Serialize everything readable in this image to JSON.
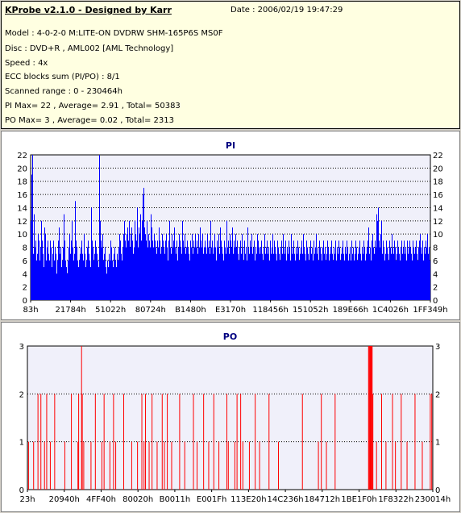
{
  "info": {
    "app": "KProbe v2.1.0 - Designed by Karr",
    "date": "Date : 2006/02/19 19:47:29",
    "lines": [
      "Model : 4-0-2-0 M:LITE-ON DVDRW SHM-165P6S MS0F",
      "Disc : DVD+R , AML002 [AML Technology]",
      "Speed : 4x",
      "ECC blocks sum (PI/PO) : 8/1",
      "Scanned range : 0 - 230464h",
      "PI Max= 22 , Average= 2.91 , Total= 50383",
      "PO Max= 3 , Average= 0.02 , Total= 2313"
    ]
  },
  "colors": {
    "pi": "#0000ff",
    "po": "#ff0000",
    "plot_bg": "#f0f0fa",
    "title": "#000080"
  },
  "chart_data": [
    {
      "type": "bar",
      "title": "PI",
      "ylim": [
        0,
        22
      ],
      "yticks": [
        0,
        2,
        4,
        6,
        8,
        10,
        12,
        14,
        16,
        18,
        20,
        22
      ],
      "xticks": [
        "83h",
        "21784h",
        "51022h",
        "80724h",
        "B1480h",
        "E3170h",
        "118456h",
        "151052h",
        "189E66h",
        "1C4026h",
        "1FF349h"
      ],
      "grid": true,
      "values": [
        12,
        19,
        22,
        7,
        13,
        8,
        9,
        6,
        7,
        10,
        9,
        6,
        8,
        12,
        9,
        7,
        5,
        11,
        10,
        6,
        8,
        9,
        7,
        6,
        9,
        8,
        5,
        7,
        9,
        6,
        8,
        7,
        4,
        6,
        9,
        11,
        7,
        8,
        5,
        6,
        8,
        13,
        9,
        6,
        5,
        4,
        6,
        8,
        10,
        7,
        9,
        12,
        8,
        6,
        7,
        15,
        9,
        8,
        6,
        5,
        6,
        7,
        8,
        9,
        7,
        6,
        10,
        7,
        5,
        6,
        8,
        9,
        7,
        6,
        5,
        14,
        9,
        8,
        6,
        7,
        9,
        8,
        7,
        6,
        5,
        22,
        12,
        9,
        8,
        10,
        6,
        7,
        8,
        5,
        4,
        6,
        5,
        7,
        6,
        9,
        8,
        6,
        5,
        7,
        8,
        6,
        5,
        7,
        6,
        8,
        10,
        9,
        7,
        6,
        8,
        10,
        12,
        9,
        8,
        10,
        11,
        9,
        12,
        8,
        10,
        11,
        9,
        7,
        8,
        12,
        10,
        9,
        14,
        8,
        11,
        10,
        13,
        9,
        12,
        16,
        17,
        11,
        10,
        9,
        12,
        8,
        10,
        9,
        8,
        13,
        11,
        9,
        8,
        10,
        9,
        8,
        7,
        9,
        8,
        11,
        9,
        7,
        8,
        10,
        9,
        8,
        7,
        9,
        10,
        8,
        6,
        9,
        12,
        8,
        7,
        10,
        8,
        9,
        11,
        8,
        7,
        9,
        6,
        8,
        10,
        9,
        8,
        7,
        12,
        9,
        8,
        10,
        7,
        8,
        9,
        8,
        7,
        6,
        9,
        8,
        10,
        7,
        9,
        8,
        10,
        8,
        9,
        7,
        10,
        8,
        11,
        9,
        8,
        10,
        7,
        8,
        9,
        8,
        7,
        10,
        8,
        9,
        7,
        12,
        8,
        9,
        7,
        8,
        10,
        8,
        6,
        9,
        8,
        10,
        7,
        11,
        9,
        8,
        7,
        6,
        9,
        8,
        7,
        12,
        8,
        9,
        7,
        10,
        9,
        8,
        11,
        7,
        9,
        8,
        10,
        8,
        9,
        7,
        6,
        8,
        9,
        7,
        10,
        8,
        6,
        9,
        7,
        8,
        6,
        11,
        8,
        7,
        9,
        8,
        10,
        7,
        8,
        9,
        6,
        8,
        7,
        10,
        9,
        8,
        7,
        8,
        9,
        7,
        6,
        8,
        10,
        7,
        8,
        9,
        7,
        8,
        6,
        9,
        7,
        8,
        10,
        7,
        9,
        8,
        7,
        6,
        9,
        8,
        7,
        6,
        8,
        9,
        7,
        10,
        8,
        7,
        9,
        6,
        8,
        7,
        9,
        8,
        6,
        10,
        7,
        8,
        9,
        7,
        6,
        8,
        7,
        9,
        8,
        6,
        7,
        8,
        9,
        7,
        10,
        8,
        7,
        6,
        9,
        8,
        7,
        6,
        8,
        9,
        7,
        8,
        6,
        9,
        7,
        8,
        10,
        7,
        8,
        6,
        9,
        8,
        7,
        6,
        8,
        9,
        7,
        8,
        6,
        7,
        9,
        8,
        6,
        7,
        8,
        9,
        7,
        6,
        8,
        7,
        9,
        6,
        8,
        7,
        9,
        8,
        6,
        7,
        8,
        9,
        7,
        6,
        8,
        7,
        9,
        8,
        6,
        7,
        8,
        6,
        9,
        7,
        8,
        6,
        7,
        9,
        8,
        6,
        7,
        8,
        9,
        7,
        6,
        8,
        7,
        9,
        8,
        6,
        7,
        8,
        9,
        11,
        7,
        8,
        6,
        9,
        10,
        8,
        7,
        9,
        8,
        13,
        12,
        14,
        9,
        8,
        10,
        12,
        7,
        9,
        8,
        6,
        7,
        9,
        8,
        7,
        6,
        9,
        8,
        7,
        10,
        8,
        7,
        9,
        8,
        6,
        7,
        9,
        8,
        7,
        6,
        8,
        9,
        7,
        8,
        9,
        7,
        8,
        6,
        9,
        7,
        8,
        9,
        8,
        7,
        6,
        9,
        8,
        7,
        8,
        9,
        7,
        6,
        8,
        9,
        10,
        8,
        7,
        9,
        6,
        8,
        7,
        9,
        8,
        10,
        7,
        8,
        6
      ]
    },
    {
      "type": "bar",
      "title": "PO",
      "ylim": [
        0,
        3
      ],
      "yticks": [
        0,
        1,
        2,
        3
      ],
      "xticks": [
        "23h",
        "20940h",
        "4FF40h",
        "80020h",
        "B0011h",
        "E001Fh",
        "113E20h",
        "14C236h",
        "184712h",
        "1BE1F0h",
        "1F8322h",
        "230014h"
      ],
      "grid": true,
      "values": [
        0,
        1,
        0,
        0,
        0,
        0,
        0,
        0,
        1,
        0,
        0,
        0,
        0,
        0,
        2,
        0,
        0,
        0,
        2,
        0,
        0,
        0,
        0,
        1,
        0,
        0,
        2,
        0,
        0,
        0,
        0,
        1,
        0,
        0,
        0,
        0,
        0,
        2,
        0,
        0,
        0,
        0,
        0,
        0,
        0,
        0,
        0,
        0,
        0,
        0,
        0,
        1,
        0,
        0,
        0,
        0,
        0,
        0,
        0,
        0,
        2,
        0,
        0,
        0,
        0,
        0,
        0,
        0,
        0,
        1,
        2,
        0,
        0,
        0,
        3,
        2,
        0,
        1,
        0,
        0,
        0,
        0,
        0,
        0,
        0,
        0,
        0,
        1,
        0,
        0,
        0,
        0,
        0,
        2,
        0,
        0,
        0,
        0,
        0,
        0,
        0,
        0,
        1,
        0,
        0,
        2,
        0,
        0,
        0,
        0,
        0,
        0,
        0,
        1,
        0,
        0,
        0,
        0,
        2,
        0,
        0,
        1,
        0,
        0,
        0,
        0,
        0,
        0,
        0,
        0,
        0,
        0,
        2,
        0,
        0,
        0,
        0,
        0,
        0,
        0,
        0,
        0,
        0,
        1,
        0,
        0,
        0,
        0,
        0,
        0,
        0,
        1,
        0,
        0,
        0,
        0,
        0,
        2,
        0,
        0,
        1,
        0,
        2,
        0,
        0,
        0,
        0,
        1,
        0,
        0,
        0,
        2,
        0,
        0,
        0,
        0,
        0,
        0,
        1,
        0,
        0,
        0,
        0,
        0,
        0,
        2,
        0,
        0,
        1,
        0,
        0,
        0,
        2,
        0,
        0,
        0,
        0,
        0,
        1,
        0,
        0,
        0,
        0,
        0,
        0,
        0,
        0,
        0,
        0,
        2,
        0,
        0,
        0,
        0,
        0,
        0,
        1,
        0,
        0,
        0,
        0,
        0,
        0,
        0,
        0,
        0,
        0,
        0,
        2,
        0,
        0,
        0,
        0,
        1,
        0,
        0,
        0,
        0,
        0,
        0,
        0,
        0,
        2,
        0,
        0,
        0,
        0,
        0,
        0,
        1,
        0,
        0,
        0,
        0,
        0,
        0,
        2,
        0,
        0,
        0,
        0,
        0,
        0,
        1,
        0,
        0,
        0,
        0,
        0,
        0,
        0,
        0,
        0,
        0,
        2,
        0,
        1,
        0,
        0,
        0,
        0,
        0,
        0,
        0,
        0,
        1,
        0,
        0,
        2,
        0,
        0,
        0,
        0,
        2,
        0,
        0,
        1,
        0,
        0,
        0,
        0,
        0,
        0,
        0,
        0,
        1,
        0,
        0,
        0,
        0,
        0,
        0,
        0,
        2,
        0,
        0,
        0,
        0,
        0,
        1,
        0,
        0,
        0,
        0,
        0,
        0,
        0,
        0,
        0,
        0,
        0,
        0,
        2,
        0,
        0,
        0,
        0,
        0,
        0,
        0,
        0,
        0,
        0,
        0,
        0,
        1,
        0,
        0,
        0,
        0,
        0,
        0,
        0,
        0,
        0,
        0,
        0,
        0,
        0,
        0,
        0,
        0,
        0,
        0,
        0,
        0,
        0,
        0,
        0,
        0,
        0,
        0,
        0,
        0,
        0,
        0,
        0,
        0,
        2,
        0,
        0,
        0,
        0,
        0,
        0,
        0,
        0,
        0,
        0,
        0,
        0,
        0,
        0,
        0,
        0,
        0,
        0,
        0,
        0,
        0,
        1,
        0,
        0,
        0,
        2,
        0,
        0,
        0,
        0,
        0,
        0,
        1,
        0,
        0,
        0,
        0,
        0,
        0,
        0,
        0,
        0,
        0,
        0,
        2,
        0,
        0,
        0,
        0,
        0,
        0,
        0,
        0,
        0,
        0,
        0,
        0,
        0,
        0,
        0,
        0,
        0,
        0,
        0,
        0,
        0,
        0,
        0,
        0,
        0,
        0,
        0,
        0,
        0,
        0,
        0,
        0,
        0,
        0,
        0,
        0,
        0,
        0,
        0,
        0,
        0,
        0,
        0,
        0,
        0,
        3,
        3,
        3,
        3,
        3,
        3,
        2,
        0,
        0,
        0,
        0,
        1,
        0,
        0,
        0,
        0,
        0,
        0,
        2,
        0,
        0,
        0,
        0,
        0,
        1,
        0,
        0,
        0,
        0,
        0,
        0,
        0,
        0,
        2,
        0,
        0,
        0,
        1,
        0,
        0,
        0,
        0,
        0,
        0,
        0,
        2,
        0,
        0,
        0,
        0,
        0,
        0,
        0,
        1,
        0,
        0,
        0,
        0,
        0,
        0,
        0,
        0,
        0,
        0,
        2,
        0,
        0,
        0,
        0,
        0,
        0,
        0,
        0,
        0,
        1,
        0,
        0,
        0,
        0,
        0,
        0,
        0,
        0,
        0,
        0,
        2,
        0,
        2,
        0
      ]
    }
  ]
}
